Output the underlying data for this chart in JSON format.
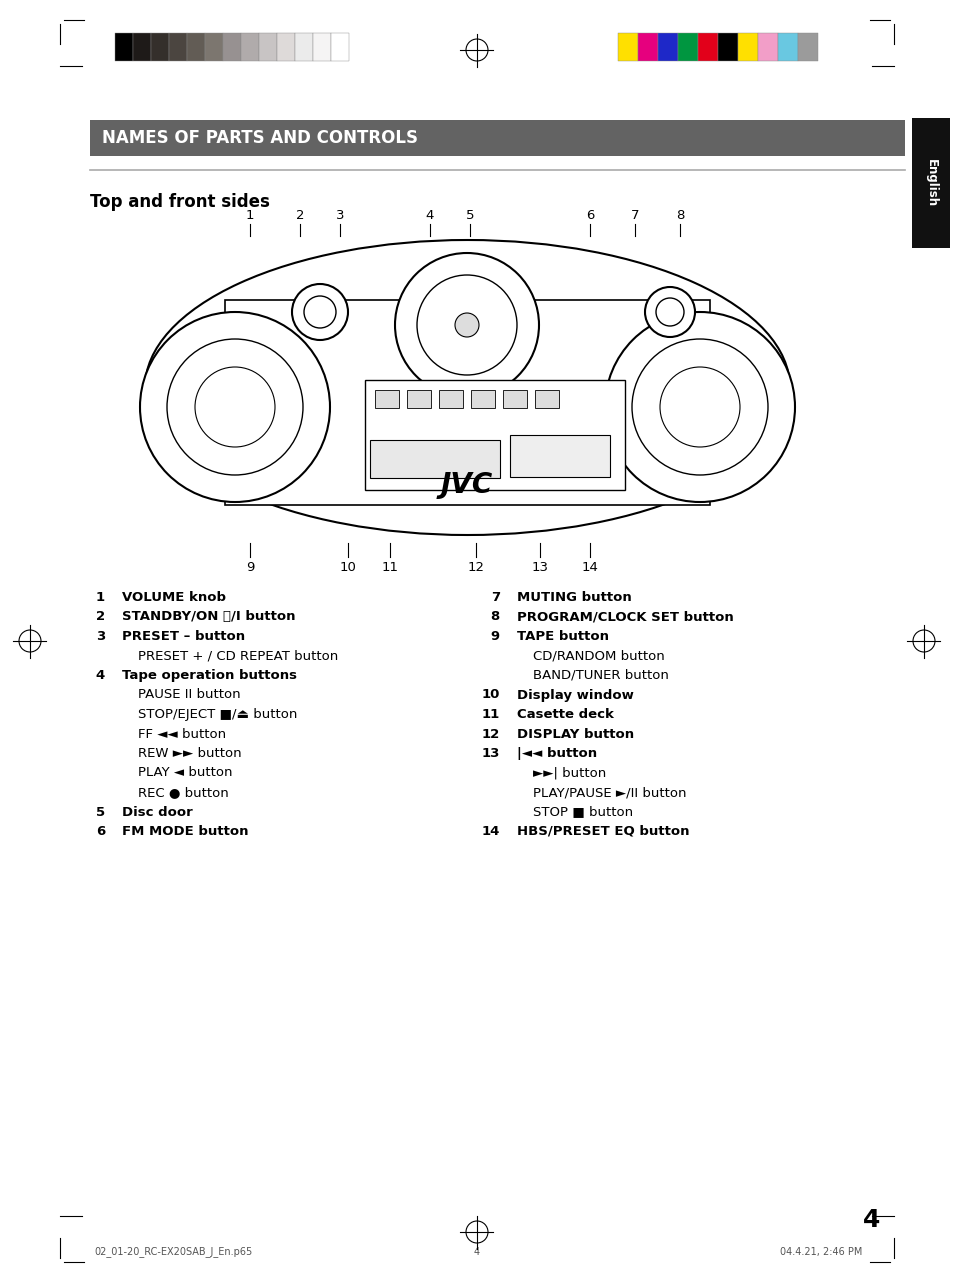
{
  "bg_color": "#ffffff",
  "header_bar_color": "#636363",
  "header_text": "NAMES OF PARTS AND CONTROLS",
  "header_text_color": "#ffffff",
  "subheader_text": "Top and front sides",
  "english_tab_color": "#111111",
  "english_tab_text": "English",
  "page_number": "4",
  "printer_marks_left_colors": [
    "#000000",
    "#1e1a18",
    "#342f2b",
    "#4b4540",
    "#625c55",
    "#7c766f",
    "#979191",
    "#b0abab",
    "#c8c4c4",
    "#dedad9",
    "#ebebeb",
    "#f5f4f4",
    "#ffffff"
  ],
  "printer_marks_right_colors": [
    "#ffe000",
    "#e6007e",
    "#1e28c8",
    "#009640",
    "#e2001a",
    "#000000",
    "#ffe000",
    "#f29ec8",
    "#69c8e1",
    "#9b9b9b"
  ],
  "left_items": [
    {
      "num": "1",
      "bold": true,
      "text": "VOLUME knob"
    },
    {
      "num": "2",
      "bold": true,
      "text": "STANDBY/ON ⏻/I button"
    },
    {
      "num": "3",
      "bold": true,
      "text": "PRESET – button"
    },
    {
      "num": "",
      "bold": false,
      "text": "PRESET + / CD REPEAT button"
    },
    {
      "num": "4",
      "bold": true,
      "text": "Tape operation buttons"
    },
    {
      "num": "",
      "bold": false,
      "text": "PAUSE II button"
    },
    {
      "num": "",
      "bold": false,
      "text": "STOP/EJECT ■/⏏ button"
    },
    {
      "num": "",
      "bold": false,
      "text": "FF ◄◄ button"
    },
    {
      "num": "",
      "bold": false,
      "text": "REW ►► button"
    },
    {
      "num": "",
      "bold": false,
      "text": "PLAY ◄ button"
    },
    {
      "num": "",
      "bold": false,
      "text": "REC ● button"
    },
    {
      "num": "5",
      "bold": true,
      "text": "Disc door"
    },
    {
      "num": "6",
      "bold": true,
      "text": "FM MODE button"
    }
  ],
  "right_items": [
    {
      "num": "7",
      "bold": true,
      "text": "MUTING button"
    },
    {
      "num": "8",
      "bold": true,
      "text": "PROGRAM/CLOCK SET button"
    },
    {
      "num": "9",
      "bold": true,
      "text": "TAPE button"
    },
    {
      "num": "",
      "bold": false,
      "text": "CD/RANDOM button"
    },
    {
      "num": "",
      "bold": false,
      "text": "BAND/TUNER button"
    },
    {
      "num": "10",
      "bold": true,
      "text": "Display window"
    },
    {
      "num": "11",
      "bold": true,
      "text": "Casette deck"
    },
    {
      "num": "12",
      "bold": true,
      "text": "DISPLAY button"
    },
    {
      "num": "13",
      "bold": true,
      "text": "|◄◄ button"
    },
    {
      "num": "",
      "bold": false,
      "text": "►►| button"
    },
    {
      "num": "",
      "bold": false,
      "text": "PLAY/PAUSE ►/II button"
    },
    {
      "num": "",
      "bold": false,
      "text": "STOP ■ button"
    },
    {
      "num": "14",
      "bold": true,
      "text": "HBS/PRESET EQ button"
    }
  ],
  "footer_left": "02_01-20_RC-EX20SAB_J_En.p65",
  "footer_center": "4",
  "footer_right": "04.4.21, 2:46 PM"
}
